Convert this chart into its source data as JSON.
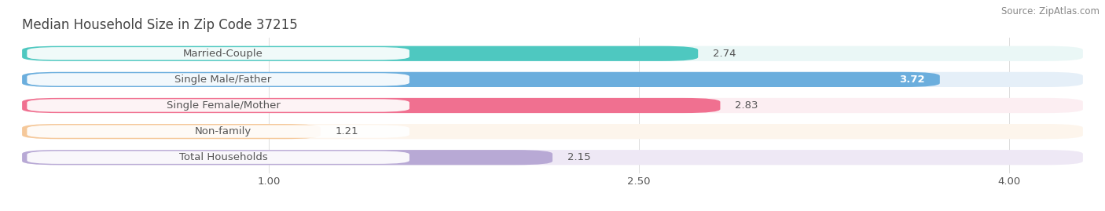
{
  "title": "Median Household Size in Zip Code 37215",
  "source": "Source: ZipAtlas.com",
  "categories": [
    "Married-Couple",
    "Single Male/Father",
    "Single Female/Mother",
    "Non-family",
    "Total Households"
  ],
  "values": [
    2.74,
    3.72,
    2.83,
    1.21,
    2.15
  ],
  "bar_colors": [
    "#4EC8C0",
    "#6BAEDD",
    "#F07090",
    "#F5C89A",
    "#B8A9D5"
  ],
  "bar_bg_colors": [
    "#EAF7F6",
    "#E5EFF8",
    "#FCEEF2",
    "#FDF5EC",
    "#EEE8F5"
  ],
  "xlim_data": [
    0.0,
    4.3
  ],
  "x_axis_start": 0.0,
  "xticks": [
    1.0,
    2.5,
    4.0
  ],
  "xtick_labels": [
    "1.00",
    "2.50",
    "4.00"
  ],
  "label_fontsize": 9.5,
  "value_fontsize": 9.5,
  "title_fontsize": 12,
  "source_fontsize": 8.5,
  "bar_height": 0.58,
  "bg_color": "#FFFFFF",
  "grid_color": "#DDDDDD",
  "label_pill_color": "#FFFFFF",
  "value_color_inside": "#FFFFFF",
  "value_color_outside": "#555555",
  "text_color": "#555555",
  "title_color": "#444444"
}
